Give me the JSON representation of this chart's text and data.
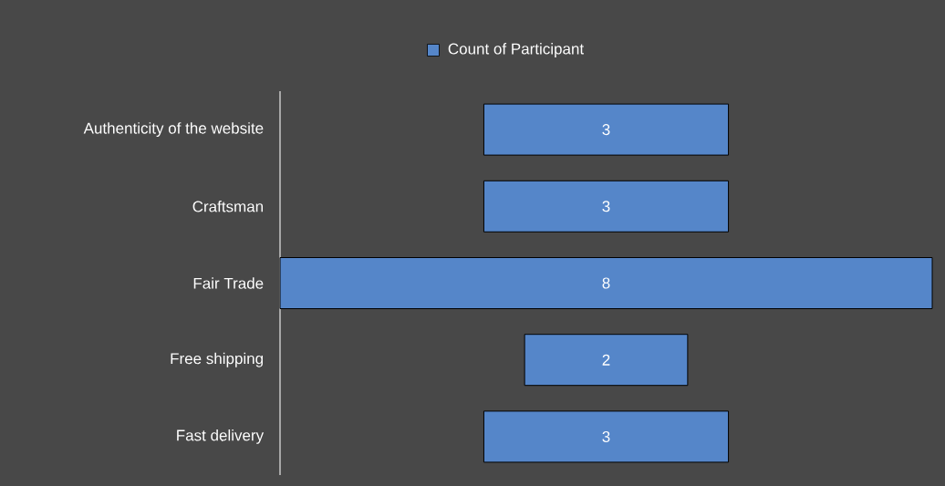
{
  "chart_data": {
    "type": "other",
    "categories": [
      "Authenticity of the website",
      "Craftsman",
      "Fair Trade",
      "Free shipping",
      "Fast delivery"
    ],
    "series": [
      {
        "name": "Count of Participant",
        "color": "#5586c9",
        "values": [
          3,
          3,
          8,
          2,
          3
        ]
      }
    ],
    "data_labels": true,
    "legend": "top"
  }
}
